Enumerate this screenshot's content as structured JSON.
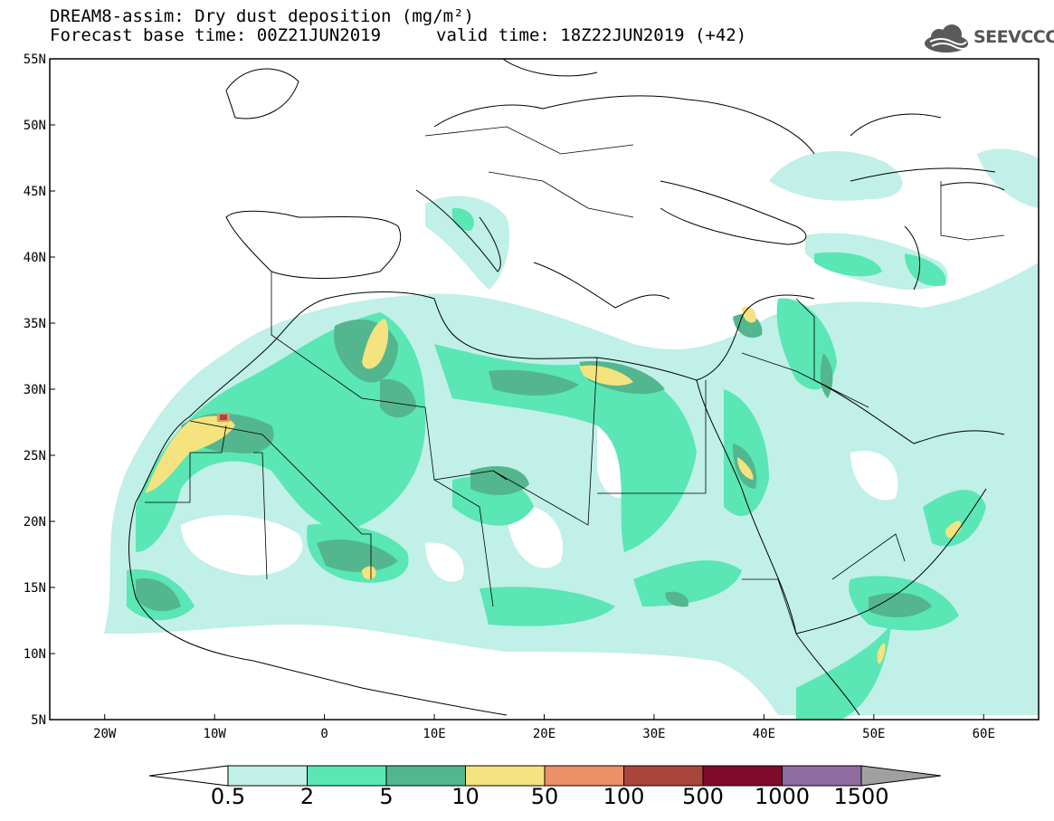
{
  "title": {
    "line1": "DREAM8-assim: Dry dust deposition (mg/m²)",
    "line2": "Forecast base time: 00Z21JUN2019",
    "valid": "valid time: 18Z22JUN2019 (+42)"
  },
  "logo": {
    "text": "SEEVCCC",
    "icon": "cloud-icon"
  },
  "map": {
    "lat_labels": [
      "55N",
      "50N",
      "45N",
      "40N",
      "35N",
      "30N",
      "25N",
      "20N",
      "15N",
      "10N",
      "5N"
    ],
    "lon_labels": [
      "20W",
      "10W",
      "0",
      "10E",
      "20E",
      "30E",
      "40E",
      "50E",
      "60E"
    ],
    "lon_range": [
      -25,
      65
    ],
    "lat_range": [
      5,
      55
    ]
  },
  "legend": {
    "labels": [
      "0.5",
      "2",
      "5",
      "10",
      "50",
      "100",
      "500",
      "1000",
      "1500"
    ],
    "colors": [
      "#ffffff",
      "#c0f0e8",
      "#5ae6b5",
      "#53b68e",
      "#f4e37e",
      "#ec9068",
      "#a9463b",
      "#800b2a",
      "#8f6b9f",
      "#a0a0a0"
    ]
  }
}
